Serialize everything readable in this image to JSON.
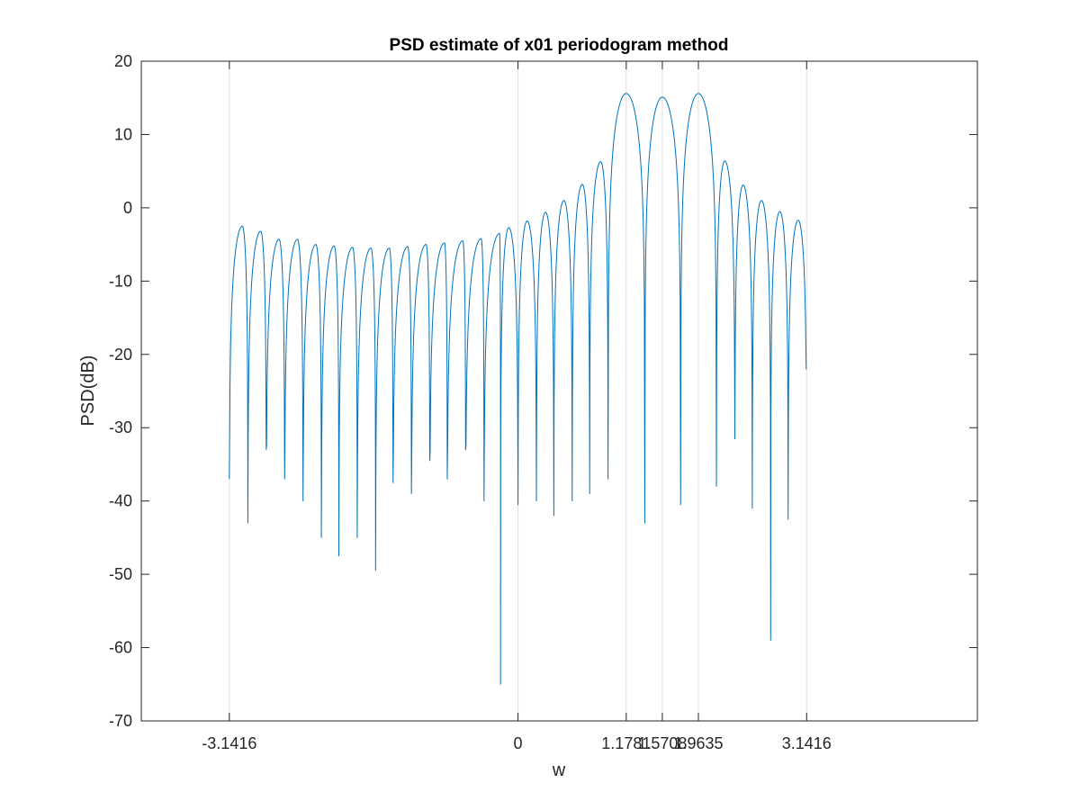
{
  "chart_data": {
    "type": "line",
    "title": "PSD estimate of x01 periodogram method",
    "xlabel": "w",
    "ylabel": "PSD(dB)",
    "xlim": [
      -4.1,
      5.0
    ],
    "ylim": [
      -70,
      20
    ],
    "grid": "x-only",
    "x_ticks": [
      {
        "value": -3.14159,
        "label": "-3.1416"
      },
      {
        "value": 0,
        "label": "0"
      },
      {
        "value": 1.1781,
        "label": "1.1781"
      },
      {
        "value": 1.5708,
        "label": "1.5708"
      },
      {
        "value": 1.9635,
        "label": "1.9635"
      },
      {
        "value": 3.14159,
        "label": "3.1416"
      }
    ],
    "y_ticks": [
      {
        "value": 20,
        "label": "20"
      },
      {
        "value": 10,
        "label": "10"
      },
      {
        "value": 0,
        "label": "0"
      },
      {
        "value": -10,
        "label": "-10"
      },
      {
        "value": -20,
        "label": "-20"
      },
      {
        "value": -30,
        "label": "-30"
      },
      {
        "value": -40,
        "label": "-40"
      },
      {
        "value": -50,
        "label": "-50"
      },
      {
        "value": -60,
        "label": "-60"
      },
      {
        "value": -70,
        "label": "-70"
      }
    ],
    "series": [
      {
        "color": "#0072bd",
        "x_start": -3.14159,
        "x_end": 3.14159,
        "start_value": -37,
        "end_value": -22,
        "lobes": [
          {
            "peak_x": -3.0,
            "peak": -2.5,
            "null_x": -2.94,
            "null": -43
          },
          {
            "peak_x": -2.8,
            "peak": -3.2,
            "null_x": -2.74,
            "null": -33
          },
          {
            "peak_x": -2.6,
            "peak": -4.3,
            "null_x": -2.54,
            "null": -37
          },
          {
            "peak_x": -2.4,
            "peak": -4.3,
            "null_x": -2.34,
            "null": -40
          },
          {
            "peak_x": -2.2,
            "peak": -5.0,
            "null_x": -2.14,
            "null": -45
          },
          {
            "peak_x": -2.0,
            "peak": -5.2,
            "null_x": -1.95,
            "null": -47.5
          },
          {
            "peak_x": -1.8,
            "peak": -5.4,
            "null_x": -1.75,
            "null": -45
          },
          {
            "peak_x": -1.6,
            "peak": -5.5,
            "null_x": -1.55,
            "null": -49.5
          },
          {
            "peak_x": -1.4,
            "peak": -5.5,
            "null_x": -1.36,
            "null": -37.5
          },
          {
            "peak_x": -1.2,
            "peak": -5.3,
            "null_x": -1.16,
            "null": -39
          },
          {
            "peak_x": -1.0,
            "peak": -5.0,
            "null_x": -0.96,
            "null": -34.5
          },
          {
            "peak_x": -0.8,
            "peak": -4.8,
            "null_x": -0.77,
            "null": -37
          },
          {
            "peak_x": -0.6,
            "peak": -4.5,
            "null_x": -0.57,
            "null": -33
          },
          {
            "peak_x": -0.4,
            "peak": -4.2,
            "null_x": -0.37,
            "null": -40
          },
          {
            "peak_x": -0.2,
            "peak": -3.5,
            "null_x": -0.19,
            "null": -65
          },
          {
            "peak_x": -0.1,
            "peak": -2.7,
            "null_x": 0.0,
            "null": -40.5
          },
          {
            "peak_x": 0.1,
            "peak": -1.8,
            "null_x": 0.2,
            "null": -40
          },
          {
            "peak_x": 0.3,
            "peak": -0.6,
            "null_x": 0.39,
            "null": -42
          },
          {
            "peak_x": 0.5,
            "peak": 1.0,
            "null_x": 0.59,
            "null": -40
          },
          {
            "peak_x": 0.7,
            "peak": 3.2,
            "null_x": 0.78,
            "null": -39
          },
          {
            "peak_x": 0.9,
            "peak": 6.3,
            "null_x": 0.98,
            "null": -37
          },
          {
            "peak_x": 1.1781,
            "peak": 15.6,
            "null_x": 1.38,
            "null": -43
          },
          {
            "peak_x": 1.5708,
            "peak": 15.1,
            "null_x": 1.77,
            "null": -40.5
          },
          {
            "peak_x": 1.9635,
            "peak": 15.6,
            "null_x": 2.16,
            "null": -38
          },
          {
            "peak_x": 2.25,
            "peak": 6.4,
            "null_x": 2.36,
            "null": -31.5
          },
          {
            "peak_x": 2.45,
            "peak": 3.1,
            "null_x": 2.55,
            "null": -41
          },
          {
            "peak_x": 2.65,
            "peak": 1.0,
            "null_x": 2.75,
            "null": -59
          },
          {
            "peak_x": 2.85,
            "peak": -0.5,
            "null_x": 2.94,
            "null": -42.5
          },
          {
            "peak_x": 3.05,
            "peak": -1.7,
            "null_x": null,
            "null": null
          }
        ]
      }
    ]
  }
}
